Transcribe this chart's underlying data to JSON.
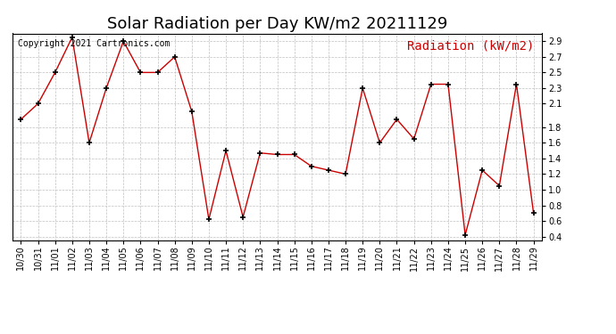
{
  "title": "Solar Radiation per Day KW/m2 20211129",
  "legend_label": "Radiation (kW/m2)",
  "copyright_text": "Copyright 2021 Cartronics.com",
  "dates": [
    "10/30",
    "10/31",
    "11/01",
    "11/02",
    "11/03",
    "11/04",
    "11/05",
    "11/06",
    "11/07",
    "11/08",
    "11/09",
    "11/10",
    "11/11",
    "11/12",
    "11/13",
    "11/14",
    "11/15",
    "11/16",
    "11/17",
    "11/18",
    "11/19",
    "11/20",
    "11/21",
    "11/22",
    "11/23",
    "11/24",
    "11/25",
    "11/26",
    "11/27",
    "11/28",
    "11/29"
  ],
  "values": [
    1.9,
    2.1,
    2.5,
    2.95,
    1.6,
    2.3,
    2.9,
    2.5,
    2.5,
    2.7,
    2.0,
    0.62,
    1.5,
    0.65,
    1.47,
    1.45,
    1.45,
    1.3,
    1.25,
    1.2,
    2.3,
    1.6,
    1.9,
    1.65,
    2.35,
    2.35,
    0.42,
    1.25,
    1.05,
    2.35,
    0.7
  ],
  "line_color": "#cc0000",
  "marker_color": "#000000",
  "grid_color": "#c0c0c0",
  "background_color": "#ffffff",
  "ylim": [
    0.35,
    3.0
  ],
  "yticks": [
    0.4,
    0.6,
    0.8,
    1.0,
    1.2,
    1.4,
    1.6,
    1.8,
    2.1,
    2.3,
    2.5,
    2.7,
    2.9
  ],
  "title_fontsize": 13,
  "legend_fontsize": 10,
  "copyright_fontsize": 7,
  "tick_fontsize": 7
}
